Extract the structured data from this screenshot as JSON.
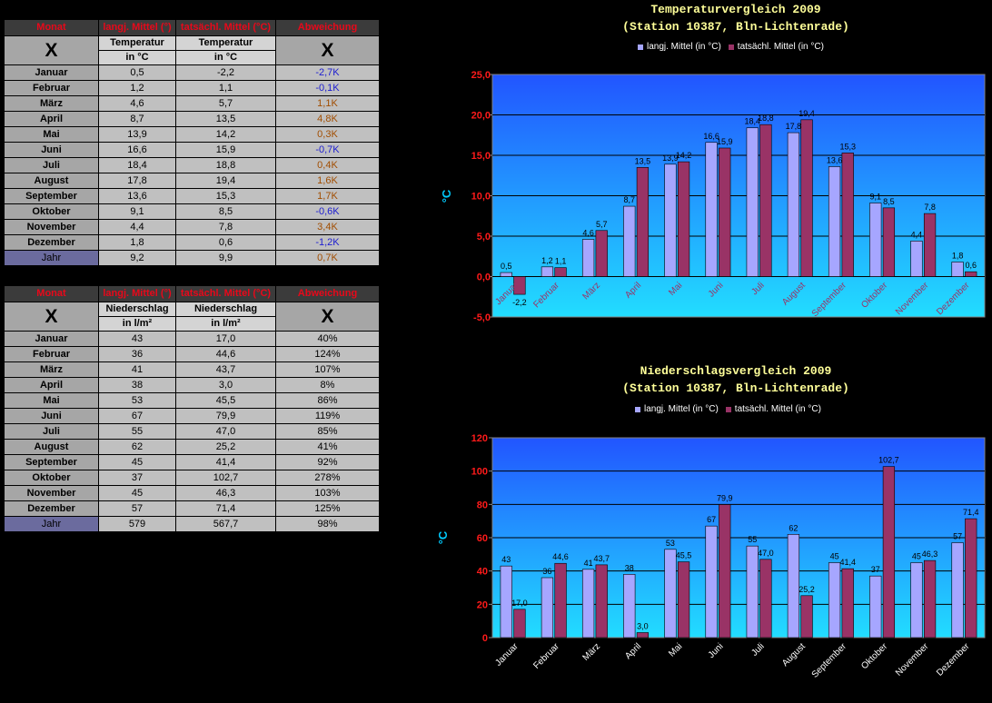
{
  "temp_table": {
    "header": [
      "Monat",
      "langj. Mittel (°)",
      "tatsächl. Mittel (°C)",
      "Abweichung"
    ],
    "corner_mark": "X",
    "right_mark": "X",
    "sub_line1": [
      "Temperatur",
      "Temperatur"
    ],
    "sub_line2": [
      "in °C",
      "in °C"
    ],
    "rows": [
      {
        "month": "Januar",
        "avg": "0,5",
        "act": "-2,2",
        "dev": "-2,7K",
        "sign": "neg"
      },
      {
        "month": "Februar",
        "avg": "1,2",
        "act": "1,1",
        "dev": "-0,1K",
        "sign": "neg"
      },
      {
        "month": "März",
        "avg": "4,6",
        "act": "5,7",
        "dev": "1,1K",
        "sign": "pos"
      },
      {
        "month": "April",
        "avg": "8,7",
        "act": "13,5",
        "dev": "4,8K",
        "sign": "pos"
      },
      {
        "month": "Mai",
        "avg": "13,9",
        "act": "14,2",
        "dev": "0,3K",
        "sign": "pos"
      },
      {
        "month": "Juni",
        "avg": "16,6",
        "act": "15,9",
        "dev": "-0,7K",
        "sign": "neg"
      },
      {
        "month": "Juli",
        "avg": "18,4",
        "act": "18,8",
        "dev": "0,4K",
        "sign": "pos"
      },
      {
        "month": "August",
        "avg": "17,8",
        "act": "19,4",
        "dev": "1,6K",
        "sign": "pos"
      },
      {
        "month": "September",
        "avg": "13,6",
        "act": "15,3",
        "dev": "1,7K",
        "sign": "pos"
      },
      {
        "month": "Oktober",
        "avg": "9,1",
        "act": "8,5",
        "dev": "-0,6K",
        "sign": "neg"
      },
      {
        "month": "November",
        "avg": "4,4",
        "act": "7,8",
        "dev": "3,4K",
        "sign": "pos"
      },
      {
        "month": "Dezember",
        "avg": "1,8",
        "act": "0,6",
        "dev": "-1,2K",
        "sign": "neg"
      }
    ],
    "year": {
      "month": "Jahr",
      "avg": "9,2",
      "act": "9,9",
      "dev": "0,7K",
      "sign": "pos"
    }
  },
  "precip_table": {
    "header": [
      "Monat",
      "langj. Mittel (°)",
      "tatsächl. Mittel (°C)",
      "Abweichung"
    ],
    "corner_mark": "X",
    "right_mark": "X",
    "sub_line1": [
      "Niederschlag",
      "Niederschlag"
    ],
    "sub_line2": [
      "in l/m²",
      "in l/m²"
    ],
    "rows": [
      {
        "month": "Januar",
        "avg": "43",
        "act": "17,0",
        "dev": "40%"
      },
      {
        "month": "Februar",
        "avg": "36",
        "act": "44,6",
        "dev": "124%"
      },
      {
        "month": "März",
        "avg": "41",
        "act": "43,7",
        "dev": "107%"
      },
      {
        "month": "April",
        "avg": "38",
        "act": "3,0",
        "dev": "8%"
      },
      {
        "month": "Mai",
        "avg": "53",
        "act": "45,5",
        "dev": "86%"
      },
      {
        "month": "Juni",
        "avg": "67",
        "act": "79,9",
        "dev": "119%"
      },
      {
        "month": "Juli",
        "avg": "55",
        "act": "47,0",
        "dev": "85%"
      },
      {
        "month": "August",
        "avg": "62",
        "act": "25,2",
        "dev": "41%"
      },
      {
        "month": "September",
        "avg": "45",
        "act": "41,4",
        "dev": "92%"
      },
      {
        "month": "Oktober",
        "avg": "37",
        "act": "102,7",
        "dev": "278%"
      },
      {
        "month": "November",
        "avg": "45",
        "act": "46,3",
        "dev": "103%"
      },
      {
        "month": "Dezember",
        "avg": "57",
        "act": "71,4",
        "dev": "125%"
      }
    ],
    "year": {
      "month": "Jahr",
      "avg": "579",
      "act": "567,7",
      "dev": "98%"
    }
  },
  "colors": {
    "series_avg": "#a6a6ff",
    "series_act": "#993366",
    "plot_top": "#2255ff",
    "plot_bottom": "#22ddff"
  },
  "chart_data": [
    {
      "type": "bar",
      "title": "Temperaturvergleich 2009",
      "subtitle": "(Station 10387, Bln-Lichtenrade)",
      "ylabel": "°C",
      "ylim": [
        -5,
        25
      ],
      "yticks": [
        "-5,0",
        "0,0",
        "5,0",
        "10,0",
        "15,0",
        "20,0",
        "25,0"
      ],
      "grid": true,
      "legend": "top",
      "categories": [
        "Januar",
        "Februar",
        "März",
        "April",
        "Mai",
        "Juni",
        "Juli",
        "August",
        "September",
        "Oktober",
        "November",
        "Dezember"
      ],
      "series": [
        {
          "name": "langj. Mittel (in °C)",
          "values": [
            0.5,
            1.2,
            4.6,
            8.7,
            13.9,
            16.6,
            18.4,
            17.8,
            13.6,
            9.1,
            4.4,
            1.8
          ],
          "labels": [
            "0,5",
            "1,2",
            "4,6",
            "8,7",
            "13,9",
            "16,6",
            "18,4",
            "17,8",
            "13,6",
            "9,1",
            "4,4",
            "1,8"
          ]
        },
        {
          "name": "tatsächl. Mittel (in °C)",
          "values": [
            -2.2,
            1.1,
            5.7,
            13.5,
            14.2,
            15.9,
            18.8,
            19.4,
            15.3,
            8.5,
            7.8,
            0.6
          ],
          "labels": [
            "-2,2",
            "1,1",
            "5,7",
            "13,5",
            "14,2",
            "15,9",
            "18,8",
            "19,4",
            "15,3",
            "8,5",
            "7,8",
            "0,6"
          ]
        }
      ]
    },
    {
      "type": "bar",
      "title": "Niederschlagsvergleich 2009",
      "subtitle": "(Station 10387, Bln-Lichtenrade)",
      "ylabel": "°C",
      "ylim": [
        0,
        120
      ],
      "yticks": [
        "0",
        "20",
        "40",
        "60",
        "80",
        "100",
        "120"
      ],
      "grid": true,
      "legend": "top",
      "categories": [
        "Januar",
        "Februar",
        "März",
        "April",
        "Mai",
        "Juni",
        "Juli",
        "August",
        "September",
        "Oktober",
        "November",
        "Dezember"
      ],
      "series": [
        {
          "name": "langj. Mittel (in °C)",
          "values": [
            43,
            36,
            41,
            38,
            53,
            67,
            55,
            62,
            45,
            37,
            45,
            57
          ],
          "labels": [
            "43",
            "36",
            "41",
            "38",
            "53",
            "67",
            "55",
            "62",
            "45",
            "37",
            "45",
            "57"
          ]
        },
        {
          "name": "tatsächl. Mittel (in °C)",
          "values": [
            17.0,
            44.6,
            43.7,
            3.0,
            45.5,
            79.9,
            47.0,
            25.2,
            41.4,
            102.7,
            46.3,
            71.4
          ],
          "labels": [
            "17,0",
            "44,6",
            "43,7",
            "3,0",
            "45,5",
            "79,9",
            "47,0",
            "25,2",
            "41,4",
            "102,7",
            "46,3",
            "71,4"
          ]
        }
      ]
    }
  ]
}
